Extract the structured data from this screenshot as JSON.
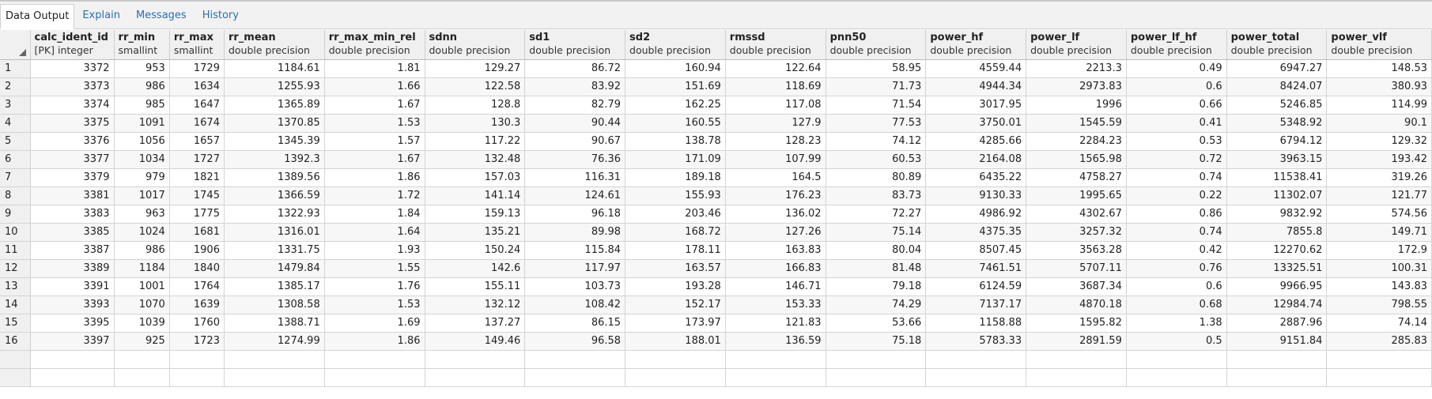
{
  "tabs": [
    {
      "label": "Data Output",
      "active": true
    },
    {
      "label": "Explain",
      "active": false
    },
    {
      "label": "Messages",
      "active": false
    },
    {
      "label": "History",
      "active": false
    }
  ],
  "columns": [
    {
      "name": "calc_ident_id",
      "type": "[PK] integer"
    },
    {
      "name": "rr_min",
      "type": "smallint"
    },
    {
      "name": "rr_max",
      "type": "smallint"
    },
    {
      "name": "rr_mean",
      "type": "double precision"
    },
    {
      "name": "rr_max_min_rel",
      "type": "double precision"
    },
    {
      "name": "sdnn",
      "type": "double precision"
    },
    {
      "name": "sd1",
      "type": "double precision"
    },
    {
      "name": "sd2",
      "type": "double precision"
    },
    {
      "name": "rmssd",
      "type": "double precision"
    },
    {
      "name": "pnn50",
      "type": "double precision"
    },
    {
      "name": "power_hf",
      "type": "double precision"
    },
    {
      "name": "power_lf",
      "type": "double precision"
    },
    {
      "name": "power_lf_hf",
      "type": "double precision"
    },
    {
      "name": "power_total",
      "type": "double precision"
    },
    {
      "name": "power_vlf",
      "type": "double precision"
    }
  ],
  "rows": [
    {
      "n": "1",
      "cells": [
        "3372",
        "953",
        "1729",
        "1184.61",
        "1.81",
        "129.27",
        "86.72",
        "160.94",
        "122.64",
        "58.95",
        "4559.44",
        "2213.3",
        "0.49",
        "6947.27",
        "148.53"
      ]
    },
    {
      "n": "2",
      "cells": [
        "3373",
        "986",
        "1634",
        "1255.93",
        "1.66",
        "122.58",
        "83.92",
        "151.69",
        "118.69",
        "71.73",
        "4944.34",
        "2973.83",
        "0.6",
        "8424.07",
        "380.93"
      ]
    },
    {
      "n": "3",
      "cells": [
        "3374",
        "985",
        "1647",
        "1365.89",
        "1.67",
        "128.8",
        "82.79",
        "162.25",
        "117.08",
        "71.54",
        "3017.95",
        "1996",
        "0.66",
        "5246.85",
        "114.99"
      ]
    },
    {
      "n": "4",
      "cells": [
        "3375",
        "1091",
        "1674",
        "1370.85",
        "1.53",
        "130.3",
        "90.44",
        "160.55",
        "127.9",
        "77.53",
        "3750.01",
        "1545.59",
        "0.41",
        "5348.92",
        "90.1"
      ]
    },
    {
      "n": "5",
      "cells": [
        "3376",
        "1056",
        "1657",
        "1345.39",
        "1.57",
        "117.22",
        "90.67",
        "138.78",
        "128.23",
        "74.12",
        "4285.66",
        "2284.23",
        "0.53",
        "6794.12",
        "129.32"
      ]
    },
    {
      "n": "6",
      "cells": [
        "3377",
        "1034",
        "1727",
        "1392.3",
        "1.67",
        "132.48",
        "76.36",
        "171.09",
        "107.99",
        "60.53",
        "2164.08",
        "1565.98",
        "0.72",
        "3963.15",
        "193.42"
      ]
    },
    {
      "n": "7",
      "cells": [
        "3379",
        "979",
        "1821",
        "1389.56",
        "1.86",
        "157.03",
        "116.31",
        "189.18",
        "164.5",
        "80.89",
        "6435.22",
        "4758.27",
        "0.74",
        "11538.41",
        "319.26"
      ]
    },
    {
      "n": "8",
      "cells": [
        "3381",
        "1017",
        "1745",
        "1366.59",
        "1.72",
        "141.14",
        "124.61",
        "155.93",
        "176.23",
        "83.73",
        "9130.33",
        "1995.65",
        "0.22",
        "11302.07",
        "121.77"
      ]
    },
    {
      "n": "9",
      "cells": [
        "3383",
        "963",
        "1775",
        "1322.93",
        "1.84",
        "159.13",
        "96.18",
        "203.46",
        "136.02",
        "72.27",
        "4986.92",
        "4302.67",
        "0.86",
        "9832.92",
        "574.56"
      ]
    },
    {
      "n": "10",
      "cells": [
        "3385",
        "1024",
        "1681",
        "1316.01",
        "1.64",
        "135.21",
        "89.98",
        "168.72",
        "127.26",
        "75.14",
        "4375.35",
        "3257.32",
        "0.74",
        "7855.8",
        "149.71"
      ]
    },
    {
      "n": "11",
      "cells": [
        "3387",
        "986",
        "1906",
        "1331.75",
        "1.93",
        "150.24",
        "115.84",
        "178.11",
        "163.83",
        "80.04",
        "8507.45",
        "3563.28",
        "0.42",
        "12270.62",
        "172.9"
      ]
    },
    {
      "n": "12",
      "cells": [
        "3389",
        "1184",
        "1840",
        "1479.84",
        "1.55",
        "142.6",
        "117.97",
        "163.57",
        "166.83",
        "81.48",
        "7461.51",
        "5707.11",
        "0.76",
        "13325.51",
        "100.31"
      ]
    },
    {
      "n": "13",
      "cells": [
        "3391",
        "1001",
        "1764",
        "1385.17",
        "1.76",
        "155.11",
        "103.73",
        "193.28",
        "146.71",
        "79.18",
        "6124.59",
        "3687.34",
        "0.6",
        "9966.95",
        "143.83"
      ]
    },
    {
      "n": "14",
      "cells": [
        "3393",
        "1070",
        "1639",
        "1308.58",
        "1.53",
        "132.12",
        "108.42",
        "152.17",
        "153.33",
        "74.29",
        "7137.17",
        "4870.18",
        "0.68",
        "12984.74",
        "798.55"
      ]
    },
    {
      "n": "15",
      "cells": [
        "3395",
        "1039",
        "1760",
        "1388.71",
        "1.69",
        "137.27",
        "86.15",
        "173.97",
        "121.83",
        "53.66",
        "1158.88",
        "1595.82",
        "1.38",
        "2887.96",
        "74.14"
      ]
    },
    {
      "n": "16",
      "cells": [
        "3397",
        "925",
        "1723",
        "1274.99",
        "1.86",
        "149.46",
        "96.58",
        "188.01",
        "136.59",
        "75.18",
        "5783.33",
        "2891.59",
        "0.5",
        "9151.84",
        "285.83"
      ]
    }
  ]
}
